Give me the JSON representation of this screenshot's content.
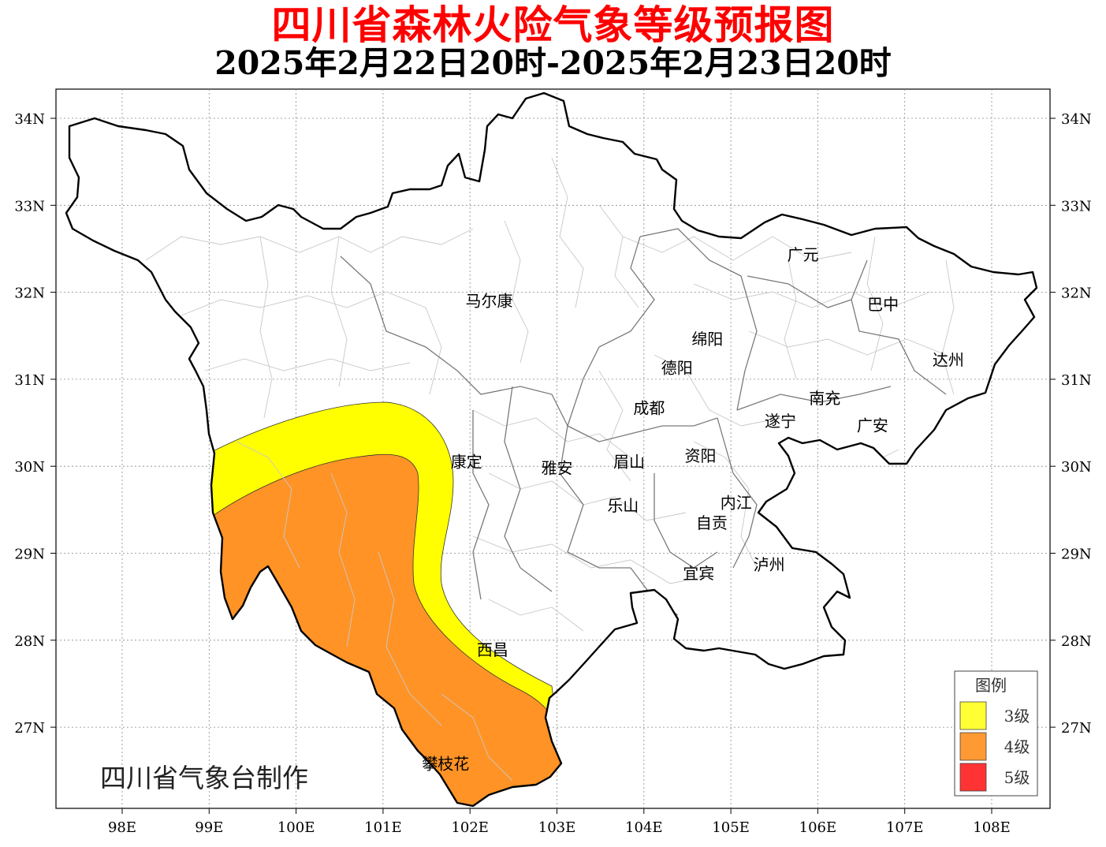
{
  "title": "四川省森林火险气象等级预报图",
  "subtitle": "2025年2月22日20时-2025年2月23日20时",
  "credit": "四川省气象台制作",
  "axes": {
    "x_ticks": [
      "98E",
      "99E",
      "100E",
      "101E",
      "102E",
      "103E",
      "104E",
      "105E",
      "106E",
      "107E",
      "108E"
    ],
    "y_ticks": [
      "34N",
      "33N",
      "32N",
      "31N",
      "30N",
      "29N",
      "28N",
      "27N"
    ]
  },
  "cities": [
    {
      "name": "马尔康",
      "lon": 102.22,
      "lat": 31.9
    },
    {
      "name": "广元",
      "lon": 105.83,
      "lat": 32.43
    },
    {
      "name": "巴中",
      "lon": 106.75,
      "lat": 31.86
    },
    {
      "name": "绵阳",
      "lon": 104.73,
      "lat": 31.46
    },
    {
      "name": "德阳",
      "lon": 104.38,
      "lat": 31.13
    },
    {
      "name": "达州",
      "lon": 107.5,
      "lat": 31.22
    },
    {
      "name": "南充",
      "lon": 106.08,
      "lat": 30.78
    },
    {
      "name": "成都",
      "lon": 104.06,
      "lat": 30.67
    },
    {
      "name": "遂宁",
      "lon": 105.57,
      "lat": 30.52
    },
    {
      "name": "广安",
      "lon": 106.63,
      "lat": 30.47
    },
    {
      "name": "康定",
      "lon": 101.96,
      "lat": 30.05
    },
    {
      "name": "雅安",
      "lon": 103.0,
      "lat": 29.98
    },
    {
      "name": "眉山",
      "lon": 103.83,
      "lat": 30.05
    },
    {
      "name": "资阳",
      "lon": 104.65,
      "lat": 30.12
    },
    {
      "name": "乐山",
      "lon": 103.76,
      "lat": 29.55
    },
    {
      "name": "自贡",
      "lon": 104.78,
      "lat": 29.35
    },
    {
      "name": "内江",
      "lon": 105.06,
      "lat": 29.58
    },
    {
      "name": "泸州",
      "lon": 105.44,
      "lat": 28.87
    },
    {
      "name": "宜宾",
      "lon": 104.63,
      "lat": 28.77
    },
    {
      "name": "西昌",
      "lon": 102.26,
      "lat": 27.89
    },
    {
      "name": "攀枝花",
      "lon": 101.72,
      "lat": 26.58
    }
  ],
  "legend": {
    "title": "图例",
    "items": [
      {
        "label": "3级",
        "color": "#ffff33"
      },
      {
        "label": "4级",
        "color": "#ff9933"
      },
      {
        "label": "5级",
        "color": "#ff3333"
      }
    ]
  },
  "zone_colors": {
    "level3": "#ffff00",
    "level4": "#ff9326"
  }
}
